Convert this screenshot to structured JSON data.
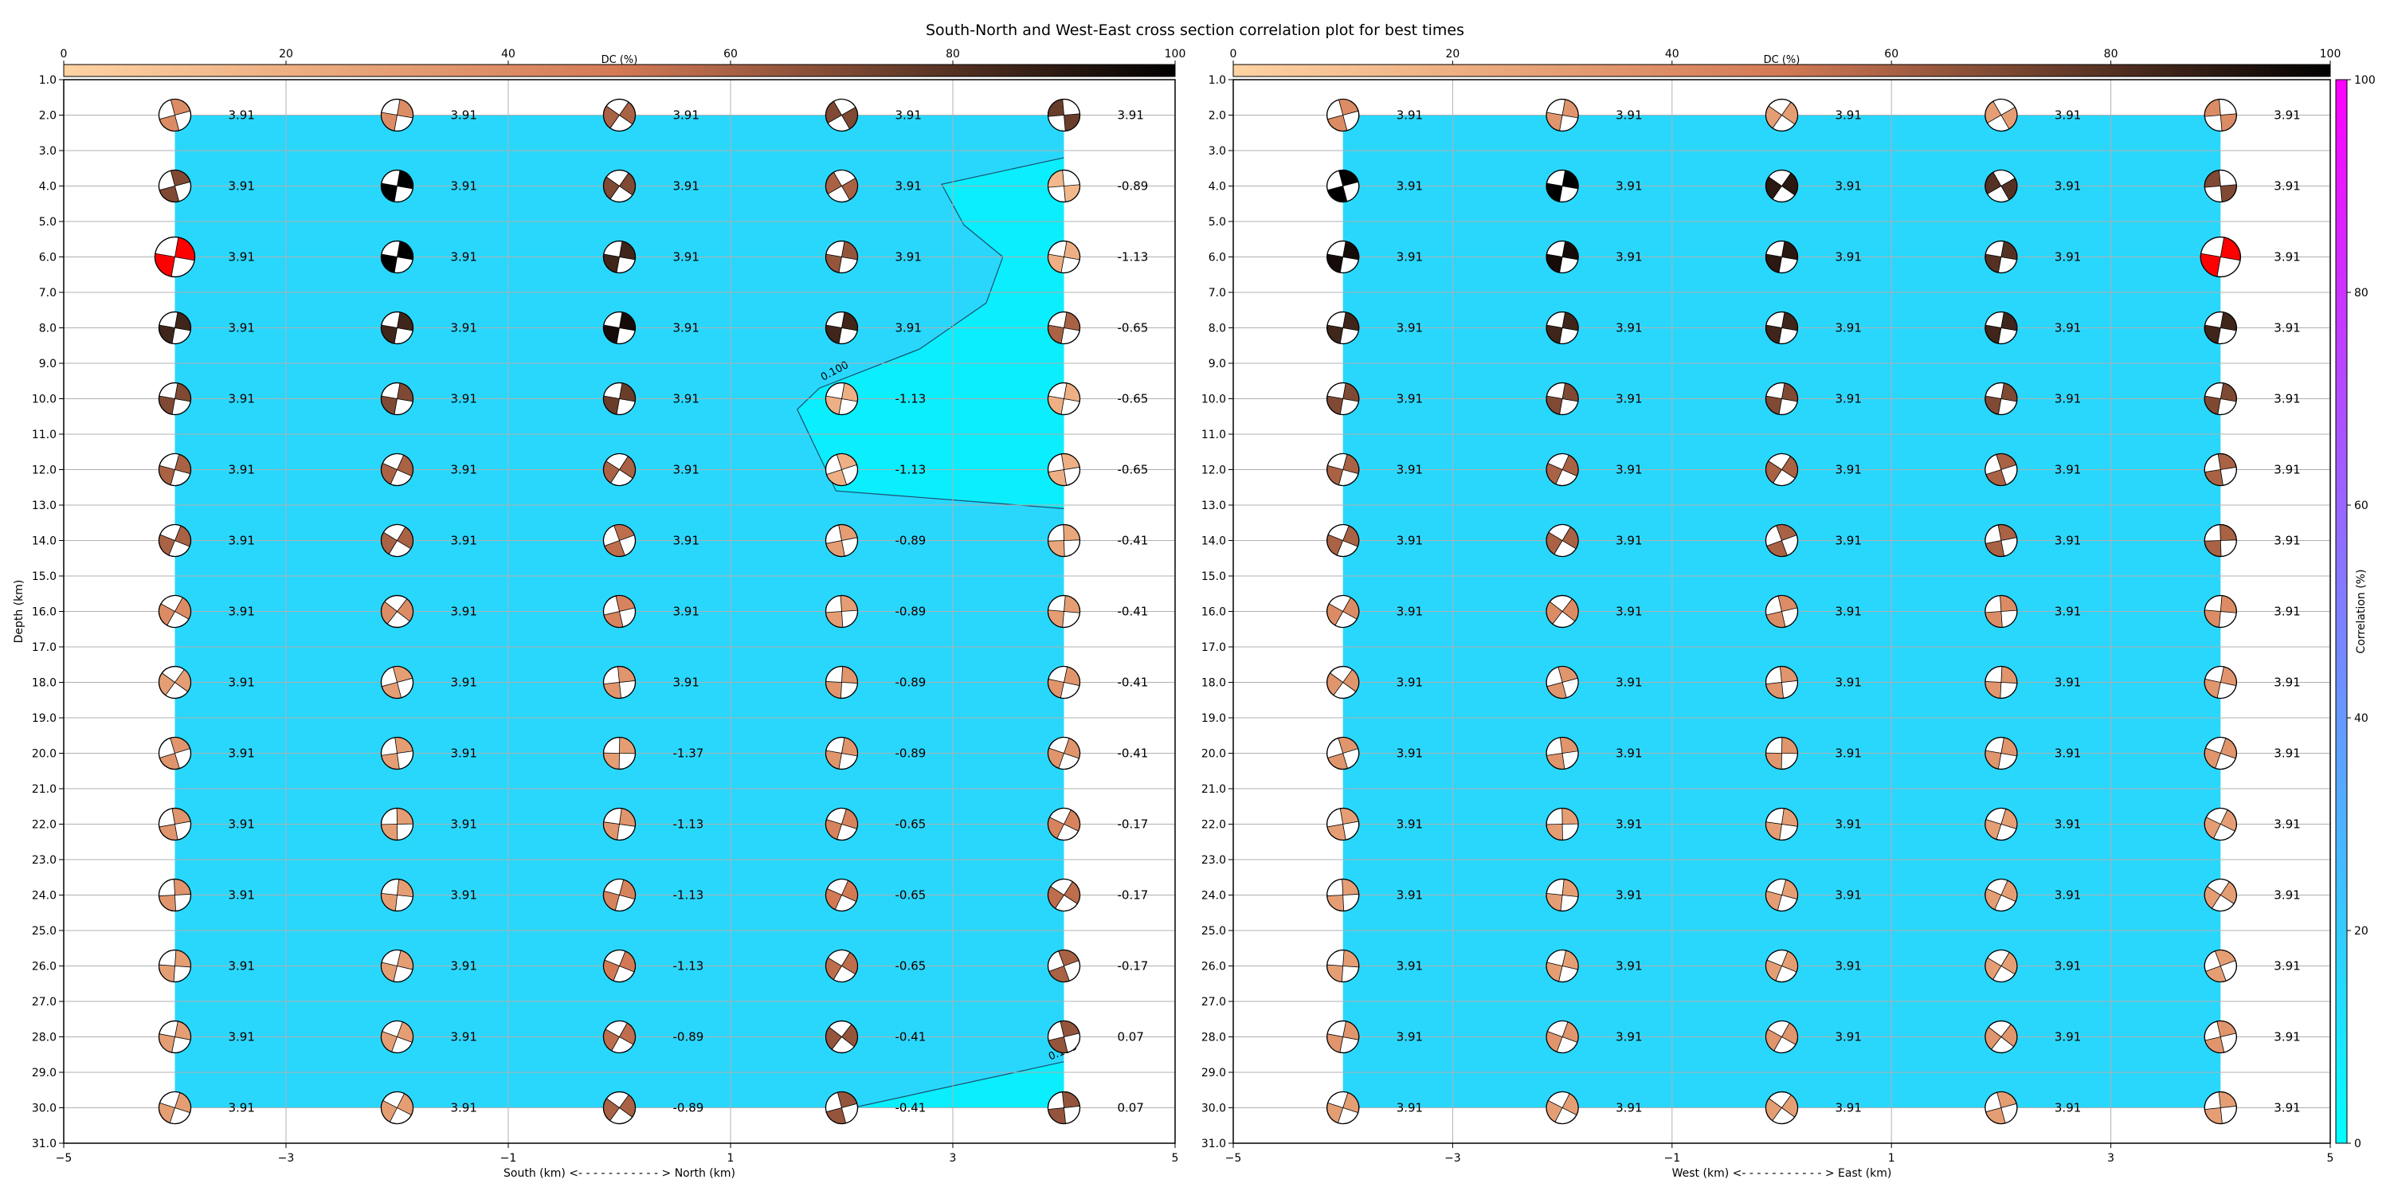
{
  "figure": {
    "title": "South-North and West-East cross section correlation plot for best times"
  },
  "colors": {
    "dc_low": "#ffd3a2",
    "dc_mid": "#d37a55",
    "dc_high": "#000000",
    "corr_low": "#00ffff",
    "corr_mid": "#7f7fff",
    "corr_high": "#ff00ff",
    "best_event": "#ff0000",
    "grid": "#b0b0b0"
  },
  "chart_data": [
    {
      "type": "heatmap",
      "name": "south-north-section",
      "xlabel": "South (km) <- - - - - - - - - - - > North (km)",
      "ylabel": "Depth (km)",
      "xlim": [
        -5,
        5
      ],
      "ylim": [
        31,
        1
      ],
      "x_ticks": [
        "−5",
        "−3",
        "−1",
        "1",
        "3",
        "5"
      ],
      "y_ticks": [
        "1.0",
        "2.0",
        "3.0",
        "4.0",
        "5.0",
        "6.0",
        "7.0",
        "8.0",
        "9.0",
        "10.0",
        "11.0",
        "12.0",
        "13.0",
        "14.0",
        "15.0",
        "16.0",
        "17.0",
        "18.0",
        "19.0",
        "20.0",
        "21.0",
        "22.0",
        "23.0",
        "24.0",
        "25.0",
        "26.0",
        "27.0",
        "28.0",
        "29.0",
        "30.0",
        "31.0"
      ],
      "grid": true,
      "dc_colorbar": {
        "label": "DC (%)",
        "range": [
          0,
          100
        ],
        "ticks": [
          "0",
          "20",
          "40",
          "60",
          "80",
          "100"
        ]
      },
      "x": [
        -4,
        -2,
        0,
        2,
        4
      ],
      "depth": [
        2,
        4,
        6,
        8,
        10,
        12,
        14,
        16,
        18,
        20,
        22,
        24,
        26,
        28,
        30
      ],
      "values": [
        [
          "3.91",
          "3.91",
          "3.91",
          "3.91",
          "3.91"
        ],
        [
          "3.91",
          "3.91",
          "3.91",
          "3.91",
          "-0.89"
        ],
        [
          "3.91",
          "3.91",
          "3.91",
          "3.91",
          "-1.13"
        ],
        [
          "3.91",
          "3.91",
          "3.91",
          "3.91",
          "-0.65"
        ],
        [
          "3.91",
          "3.91",
          "3.91",
          "-1.13",
          "-0.65"
        ],
        [
          "3.91",
          "3.91",
          "3.91",
          "-1.13",
          "-0.65"
        ],
        [
          "3.91",
          "3.91",
          "3.91",
          "-0.89",
          "-0.41"
        ],
        [
          "3.91",
          "3.91",
          "3.91",
          "-0.89",
          "-0.41"
        ],
        [
          "3.91",
          "3.91",
          "3.91",
          "-0.89",
          "-0.41"
        ],
        [
          "3.91",
          "3.91",
          "-1.37",
          "-0.89",
          "-0.41"
        ],
        [
          "3.91",
          "3.91",
          "-1.13",
          "-0.65",
          "-0.17"
        ],
        [
          "3.91",
          "3.91",
          "-1.13",
          "-0.65",
          "-0.17"
        ],
        [
          "3.91",
          "3.91",
          "-1.13",
          "-0.65",
          "-0.17"
        ],
        [
          "3.91",
          "3.91",
          "-0.89",
          "-0.41",
          "0.07"
        ],
        [
          "3.91",
          "3.91",
          "-0.89",
          "-0.41",
          "0.07"
        ]
      ],
      "correlation_contour": {
        "level_label": "0.100",
        "value": 0.1
      },
      "best_solution": {
        "x": -4,
        "depth": 6
      }
    },
    {
      "type": "heatmap",
      "name": "west-east-section",
      "xlabel": "West (km) <- - - - - - - - - - - > East (km)",
      "ylabel": "",
      "xlim": [
        -5,
        5
      ],
      "ylim": [
        31,
        1
      ],
      "x_ticks": [
        "−5",
        "−3",
        "−1",
        "1",
        "3",
        "5"
      ],
      "y_ticks": [
        "1.0",
        "2.0",
        "3.0",
        "4.0",
        "5.0",
        "6.0",
        "7.0",
        "8.0",
        "9.0",
        "10.0",
        "11.0",
        "12.0",
        "13.0",
        "14.0",
        "15.0",
        "16.0",
        "17.0",
        "18.0",
        "19.0",
        "20.0",
        "21.0",
        "22.0",
        "23.0",
        "24.0",
        "25.0",
        "26.0",
        "27.0",
        "28.0",
        "29.0",
        "30.0",
        "31.0"
      ],
      "grid": true,
      "dc_colorbar": {
        "label": "DC (%)",
        "range": [
          0,
          100
        ],
        "ticks": [
          "0",
          "20",
          "40",
          "60",
          "80",
          "100"
        ]
      },
      "correlation_colorbar": {
        "label": "Correlation (%)",
        "range": [
          0,
          100
        ],
        "ticks": [
          "0",
          "20",
          "40",
          "60",
          "80",
          "100"
        ]
      },
      "x": [
        -4,
        -2,
        0,
        2,
        4
      ],
      "depth": [
        2,
        4,
        6,
        8,
        10,
        12,
        14,
        16,
        18,
        20,
        22,
        24,
        26,
        28,
        30
      ],
      "values": [
        [
          "3.91",
          "3.91",
          "3.91",
          "3.91",
          "3.91"
        ],
        [
          "3.91",
          "3.91",
          "3.91",
          "3.91",
          "3.91"
        ],
        [
          "3.91",
          "3.91",
          "3.91",
          "3.91",
          "3.91"
        ],
        [
          "3.91",
          "3.91",
          "3.91",
          "3.91",
          "3.91"
        ],
        [
          "3.91",
          "3.91",
          "3.91",
          "3.91",
          "3.91"
        ],
        [
          "3.91",
          "3.91",
          "3.91",
          "3.91",
          "3.91"
        ],
        [
          "3.91",
          "3.91",
          "3.91",
          "3.91",
          "3.91"
        ],
        [
          "3.91",
          "3.91",
          "3.91",
          "3.91",
          "3.91"
        ],
        [
          "3.91",
          "3.91",
          "3.91",
          "3.91",
          "3.91"
        ],
        [
          "3.91",
          "3.91",
          "3.91",
          "3.91",
          "3.91"
        ],
        [
          "3.91",
          "3.91",
          "3.91",
          "3.91",
          "3.91"
        ],
        [
          "3.91",
          "3.91",
          "3.91",
          "3.91",
          "3.91"
        ],
        [
          "3.91",
          "3.91",
          "3.91",
          "3.91",
          "3.91"
        ],
        [
          "3.91",
          "3.91",
          "3.91",
          "3.91",
          "3.91"
        ],
        [
          "3.91",
          "3.91",
          "3.91",
          "3.91",
          "3.91"
        ]
      ],
      "best_solution": {
        "x": 4,
        "depth": 6
      }
    }
  ]
}
